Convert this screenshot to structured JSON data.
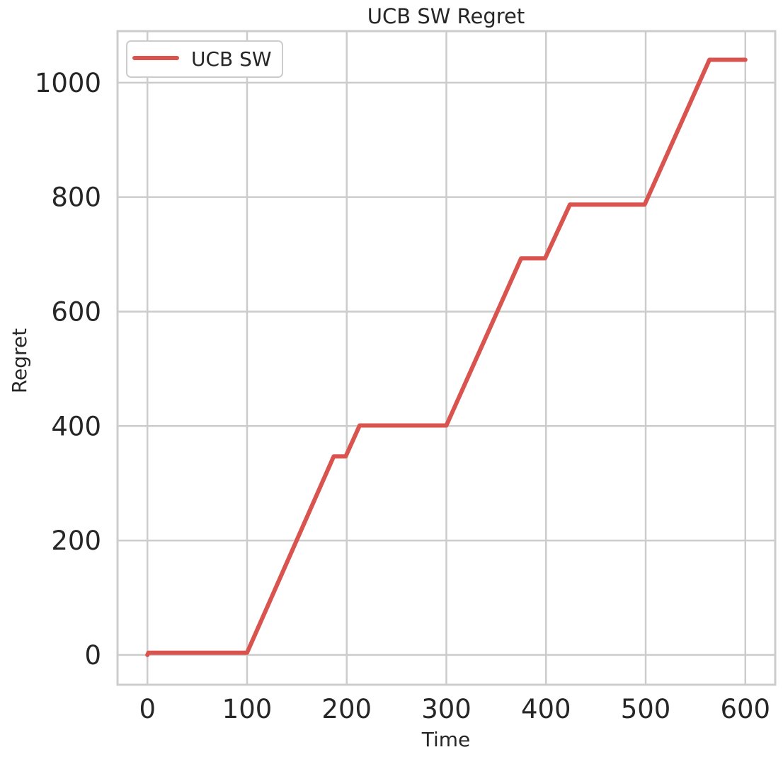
{
  "chart_data": {
    "type": "line",
    "title": "UCB SW Regret",
    "xlabel": "Time",
    "ylabel": "Regret",
    "xlim": [
      -30,
      630
    ],
    "ylim": [
      -52,
      1090
    ],
    "xticks": [
      0,
      100,
      200,
      300,
      400,
      500,
      600
    ],
    "yticks": [
      0,
      200,
      400,
      600,
      800,
      1000
    ],
    "grid": true,
    "legend_position": "top-left",
    "series": [
      {
        "name": "UCB SW",
        "color": "#d9534f",
        "x": [
          0,
          1,
          100,
          187,
          199,
          213,
          300,
          375,
          399,
          424,
          499,
          564,
          600
        ],
        "y": [
          0,
          4,
          4,
          347,
          347,
          401,
          401,
          693,
          693,
          787,
          787,
          1040,
          1040
        ]
      }
    ]
  }
}
